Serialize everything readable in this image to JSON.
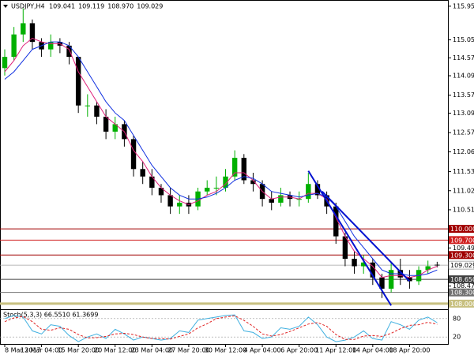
{
  "chart_data": {
    "type": "candlestick",
    "title": "USDJPY,H4",
    "header_values": [
      "109.041",
      "109.119",
      "108.970",
      "109.029"
    ],
    "categories": [
      "8 Mar 2017",
      null,
      null,
      null,
      "13 Mar 04:00",
      null,
      null,
      null,
      "15 Mar 20:00",
      null,
      null,
      null,
      "20 Mar 12:00",
      null,
      null,
      null,
      "23 Mar 04:00",
      null,
      null,
      null,
      "27 Mar 20:00",
      null,
      null,
      null,
      "30 Mar 12:00",
      null,
      null,
      null,
      "4 Apr 04:00",
      null,
      null,
      null,
      "6 Apr 20:00",
      null,
      null,
      null,
      "11 Apr 12:00",
      null,
      null,
      null,
      "14 Apr 04:00",
      null,
      null,
      null,
      "18 Apr 20:00",
      null,
      null,
      null
    ],
    "open": [
      114.3,
      114.6,
      115.2,
      115.5,
      115.0,
      114.8,
      115.0,
      114.9,
      114.6,
      113.3,
      113.3,
      113.0,
      112.6,
      112.8,
      112.4,
      111.6,
      111.4,
      111.1,
      110.9,
      110.6,
      110.7,
      110.6,
      111.0,
      111.1,
      111.1,
      111.4,
      111.9,
      111.3,
      111.2,
      110.8,
      110.7,
      110.9,
      110.8,
      110.8,
      111.2,
      110.9,
      110.6,
      109.8,
      109.2,
      109.0,
      109.1,
      108.7,
      108.4,
      108.9,
      108.7,
      108.6,
      108.9,
      109.041
    ],
    "high": [
      114.8,
      115.4,
      115.9,
      115.6,
      115.1,
      115.2,
      115.1,
      115.0,
      114.6,
      113.6,
      113.4,
      113.2,
      113.0,
      112.9,
      112.5,
      111.8,
      111.6,
      111.2,
      111.1,
      110.9,
      110.9,
      111.1,
      111.3,
      111.4,
      111.6,
      112.1,
      112.0,
      111.5,
      111.3,
      111.0,
      111.1,
      111.0,
      111.0,
      111.5,
      111.3,
      111.0,
      110.7,
      109.9,
      109.4,
      109.3,
      109.2,
      108.8,
      109.1,
      109.2,
      108.9,
      109.0,
      109.15,
      109.119
    ],
    "low": [
      114.1,
      114.5,
      115.0,
      114.8,
      114.6,
      114.6,
      114.7,
      114.4,
      113.1,
      113.0,
      112.8,
      112.4,
      112.4,
      112.2,
      111.4,
      111.2,
      110.9,
      110.7,
      110.4,
      110.4,
      110.4,
      110.5,
      110.9,
      110.9,
      111.0,
      111.3,
      111.2,
      111.0,
      110.6,
      110.5,
      110.6,
      110.6,
      110.6,
      110.7,
      110.8,
      110.4,
      109.6,
      109.0,
      108.8,
      108.8,
      108.5,
      108.15,
      108.3,
      108.5,
      108.4,
      108.5,
      108.8,
      108.97
    ],
    "close": [
      114.6,
      115.2,
      115.5,
      115.0,
      114.8,
      115.0,
      114.9,
      114.6,
      113.3,
      113.3,
      113.0,
      112.6,
      112.8,
      112.4,
      111.6,
      111.4,
      111.1,
      110.9,
      110.6,
      110.7,
      110.6,
      111.0,
      111.1,
      111.1,
      111.4,
      111.9,
      111.3,
      111.2,
      110.8,
      110.7,
      110.9,
      110.8,
      110.8,
      111.2,
      110.9,
      110.6,
      109.8,
      109.2,
      109.0,
      109.1,
      108.7,
      108.4,
      108.9,
      108.7,
      108.6,
      108.9,
      109.0,
      109.029
    ],
    "up_color": "#00b000",
    "down_color": "#000000",
    "series": [
      {
        "color": "#e0207a",
        "values": [
          114.2,
          114.5,
          114.9,
          115.1,
          115.0,
          114.95,
          114.95,
          114.8,
          114.2,
          113.8,
          113.4,
          113.0,
          112.8,
          112.6,
          112.1,
          111.8,
          111.4,
          111.1,
          110.9,
          110.75,
          110.65,
          110.75,
          110.9,
          111.0,
          111.2,
          111.5,
          111.5,
          111.3,
          111.0,
          110.8,
          110.85,
          110.85,
          110.8,
          110.95,
          110.95,
          110.8,
          110.3,
          109.8,
          109.4,
          109.2,
          109.0,
          108.7,
          108.75,
          108.75,
          108.7,
          108.75,
          108.9,
          109.0
        ]
      },
      {
        "color": "#1030e0",
        "values": [
          114.0,
          114.2,
          114.5,
          114.8,
          114.9,
          115.0,
          115.0,
          114.9,
          114.6,
          114.2,
          113.8,
          113.4,
          113.1,
          112.9,
          112.5,
          112.1,
          111.7,
          111.4,
          111.1,
          110.9,
          110.8,
          110.8,
          110.85,
          110.95,
          111.1,
          111.3,
          111.4,
          111.35,
          111.2,
          111.0,
          110.95,
          110.9,
          110.85,
          110.9,
          110.95,
          110.85,
          110.6,
          110.2,
          109.8,
          109.5,
          109.2,
          108.9,
          108.8,
          108.8,
          108.75,
          108.75,
          108.8,
          108.9
        ]
      }
    ],
    "trendlines": [
      {
        "x": [
          33,
          42
        ],
        "y": [
          111.55,
          107.95
        ],
        "color": "#0010d0"
      },
      {
        "x": [
          34.5,
          44
        ],
        "y": [
          111.0,
          108.6
        ],
        "color": "#0010d0"
      }
    ],
    "levels": [
      {
        "value": 110,
        "label": "110.000",
        "color": "#a00000"
      },
      {
        "value": 109.7,
        "label": "109.700",
        "color": "#d02020"
      },
      {
        "value": 109.3,
        "label": "109.300",
        "color": "#a00000"
      },
      {
        "value": 108.65,
        "label": "108.650",
        "color": "#404040"
      },
      {
        "value": 108.3,
        "label": "108.300",
        "color": "#707070"
      },
      {
        "value": 108,
        "label": "108.000",
        "color": "#c8c080"
      }
    ],
    "current_price": 109.029,
    "ylim": [
      107.85,
      116.1
    ],
    "yticks": [
      115.955,
      115.055,
      114.575,
      114.095,
      113.575,
      113.095,
      112.575,
      {
        "value": 112.06,
        "label": "112.060"
      },
      {
        "value": 111.53,
        "label": "111.530"
      },
      {
        "value": 111.02,
        "label": "111.020"
      },
      {
        "value": 110.51,
        "label": "110.510"
      },
      {
        "value": 109.49,
        "label": "109.490"
      },
      {
        "value": 108.47,
        "label": "108.470"
      }
    ],
    "stochastic": {
      "title": "Stoch(5,3,3) 66.5510 61.3699",
      "ylim": [
        0,
        100
      ],
      "yticks": [
        80,
        20
      ],
      "series": [
        {
          "color": "#40b0e0",
          "values": [
            80,
            90,
            85,
            40,
            30,
            60,
            55,
            25,
            5,
            20,
            30,
            15,
            45,
            30,
            10,
            20,
            15,
            10,
            15,
            40,
            35,
            75,
            80,
            85,
            90,
            92,
            40,
            35,
            15,
            20,
            50,
            45,
            55,
            85,
            60,
            20,
            5,
            10,
            20,
            40,
            15,
            10,
            70,
            60,
            45,
            75,
            85,
            66.551
          ]
        },
        {
          "color": "#e02020",
          "values": [
            70,
            82,
            87,
            70,
            45,
            42,
            50,
            45,
            28,
            17,
            18,
            22,
            30,
            32,
            28,
            20,
            15,
            15,
            13,
            22,
            30,
            50,
            63,
            80,
            85,
            89,
            74,
            55,
            30,
            23,
            28,
            38,
            50,
            62,
            67,
            55,
            28,
            12,
            12,
            23,
            25,
            22,
            32,
            47,
            58,
            60,
            68,
            61.3699
          ]
        }
      ]
    }
  }
}
